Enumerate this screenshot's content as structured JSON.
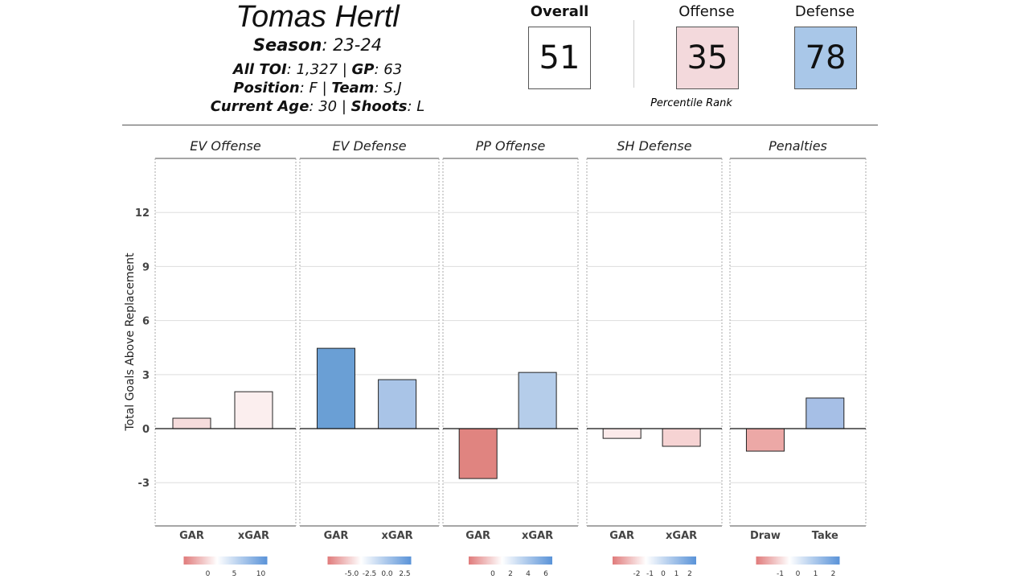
{
  "header": {
    "player_name": "Tomas Hertl",
    "season_label": "Season",
    "season": "23-24",
    "toi_label": "All TOI",
    "toi": "1,327",
    "gp_label": "GP",
    "gp": "63",
    "position_label": "Position",
    "position": "F",
    "team_label": "Team",
    "team": "S.J",
    "age_label": "Current Age",
    "age": "30",
    "shoots_label": "Shoots",
    "shoots": "L"
  },
  "ratings": {
    "overall_label": "Overall",
    "overall": "51",
    "offense_label": "Offense",
    "offense": "35",
    "defense_label": "Defense",
    "defense": "78",
    "caption": "Percentile Rank",
    "colors": {
      "overall": "#ffffff",
      "offense": "#f3d9dc",
      "defense": "#a9c7e8"
    }
  },
  "chart_data": {
    "type": "bar",
    "ylabel": "Total Goals Above Replacement",
    "ylim": [
      -5.4,
      15
    ],
    "yticks": [
      -3,
      0,
      3,
      6,
      9,
      12
    ],
    "grid": true,
    "panels": [
      {
        "title": "EV Offense",
        "categories": [
          "GAR",
          "xGAR"
        ],
        "values": [
          0.58,
          2.05
        ],
        "colors": [
          "#f6dcdc",
          "#fbeeee"
        ],
        "legend_ticks": [
          "0",
          "5",
          "10"
        ]
      },
      {
        "title": "EV Defense",
        "categories": [
          "GAR",
          "xGAR"
        ],
        "values": [
          4.46,
          2.72
        ],
        "colors": [
          "#6a9fd5",
          "#a9c4e7"
        ],
        "legend_ticks": [
          "-5.0",
          "-2.5",
          "0.0",
          "2.5"
        ]
      },
      {
        "title": "PP Offense",
        "categories": [
          "GAR",
          "xGAR"
        ],
        "values": [
          -2.77,
          3.12
        ],
        "colors": [
          "#e08480",
          "#b5cdea"
        ],
        "legend_ticks": [
          "0",
          "2",
          "4",
          "6"
        ]
      },
      {
        "title": "SH Defense",
        "categories": [
          "GAR",
          "xGAR"
        ],
        "values": [
          -0.54,
          -0.98
        ],
        "colors": [
          "#fbeaea",
          "#f6d3d3"
        ],
        "legend_ticks": [
          "-2",
          "-1",
          "0",
          "1",
          "2"
        ]
      },
      {
        "title": "Penalties",
        "categories": [
          "Draw",
          "Take"
        ],
        "values": [
          -1.25,
          1.7
        ],
        "colors": [
          "#eca8a6",
          "#a6bfe6"
        ],
        "legend_ticks": [
          "-1",
          "0",
          "1",
          "2"
        ]
      }
    ]
  }
}
